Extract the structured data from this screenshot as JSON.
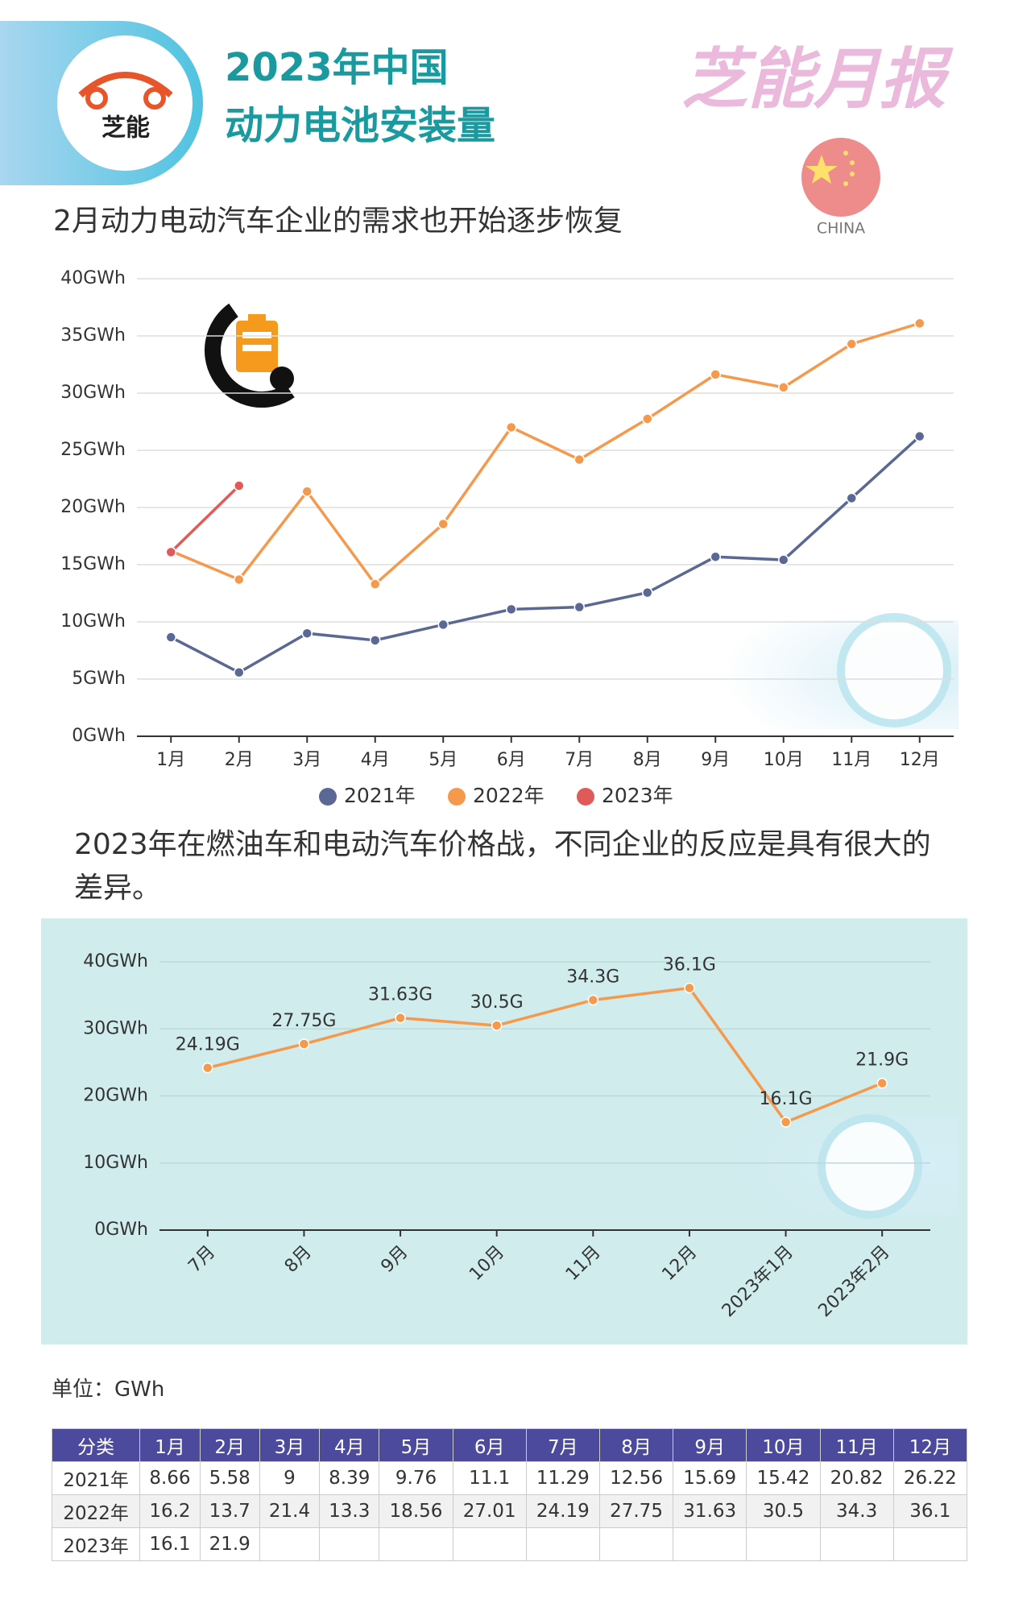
{
  "header": {
    "title_line1": "2023年中国",
    "title_line2": "动力电池安装量",
    "logo_text": "芝能",
    "brand": "芝能月报",
    "flag_label": "CHINA"
  },
  "chart_data": [
    {
      "type": "line",
      "subtitle": "2月动力电动汽车企业的需求也开始逐步恢复",
      "categories": [
        "1月",
        "2月",
        "3月",
        "4月",
        "5月",
        "6月",
        "7月",
        "8月",
        "9月",
        "10月",
        "11月",
        "12月"
      ],
      "ylim": [
        0,
        40
      ],
      "yticks": [
        {
          "value": 0,
          "label": "0GWh"
        },
        {
          "value": 5,
          "label": "5GWh"
        },
        {
          "value": 10,
          "label": "10GWh"
        },
        {
          "value": 15,
          "label": "15GWh"
        },
        {
          "value": 20,
          "label": "20GWh"
        },
        {
          "value": 25,
          "label": "25GWh"
        },
        {
          "value": 30,
          "label": "30GWh"
        },
        {
          "value": 35,
          "label": "35GWh"
        },
        {
          "value": 40,
          "label": "40GWh"
        }
      ],
      "grid": true,
      "legend": "bottom",
      "series": [
        {
          "name": "2021年",
          "color": "#5a6893",
          "values": [
            8.66,
            5.58,
            9,
            8.39,
            9.76,
            11.1,
            11.29,
            12.56,
            15.69,
            15.42,
            20.82,
            26.22
          ]
        },
        {
          "name": "2022年",
          "color": "#f5994c",
          "values": [
            16.2,
            13.7,
            21.4,
            13.3,
            18.56,
            27.01,
            24.19,
            27.75,
            31.63,
            30.5,
            34.3,
            36.1
          ]
        },
        {
          "name": "2023年",
          "color": "#e05a5a",
          "values": [
            16.1,
            21.9,
            null,
            null,
            null,
            null,
            null,
            null,
            null,
            null,
            null,
            null
          ]
        }
      ]
    },
    {
      "type": "line",
      "subtitle": "2023年在燃油车和电动汽车价格战，不同企业的反应是具有很大的差异。",
      "categories": [
        "7月",
        "8月",
        "9月",
        "10月",
        "11月",
        "12月",
        "2023年1月",
        "2023年2月"
      ],
      "values": [
        24.19,
        27.75,
        31.63,
        30.5,
        34.3,
        36.1,
        16.1,
        21.9
      ],
      "value_labels": [
        "24.19G",
        "27.75G",
        "31.63G",
        "30.5G",
        "34.3G",
        "36.1G",
        "16.1G",
        "21.9G"
      ],
      "color": "#f5994c",
      "ylim": [
        0,
        40
      ],
      "yticks": [
        {
          "value": 0,
          "label": "0GWh"
        },
        {
          "value": 10,
          "label": "10GWh"
        },
        {
          "value": 20,
          "label": "20GWh"
        },
        {
          "value": 30,
          "label": "30GWh"
        },
        {
          "value": 40,
          "label": "40GWh"
        }
      ],
      "grid": true
    }
  ],
  "unit_note": "单位：GWh",
  "table": {
    "header": [
      "分类",
      "1月",
      "2月",
      "3月",
      "4月",
      "5月",
      "6月",
      "7月",
      "8月",
      "9月",
      "10月",
      "11月",
      "12月"
    ],
    "rows": [
      [
        "2021年",
        8.66,
        5.58,
        9,
        8.39,
        9.76,
        11.1,
        11.29,
        12.56,
        15.69,
        15.42,
        20.82,
        26.22
      ],
      [
        "2022年",
        16.2,
        13.7,
        21.4,
        13.3,
        18.56,
        27.01,
        24.19,
        27.75,
        31.63,
        30.5,
        34.3,
        36.1
      ],
      [
        "2023年",
        16.1,
        21.9
      ]
    ]
  }
}
